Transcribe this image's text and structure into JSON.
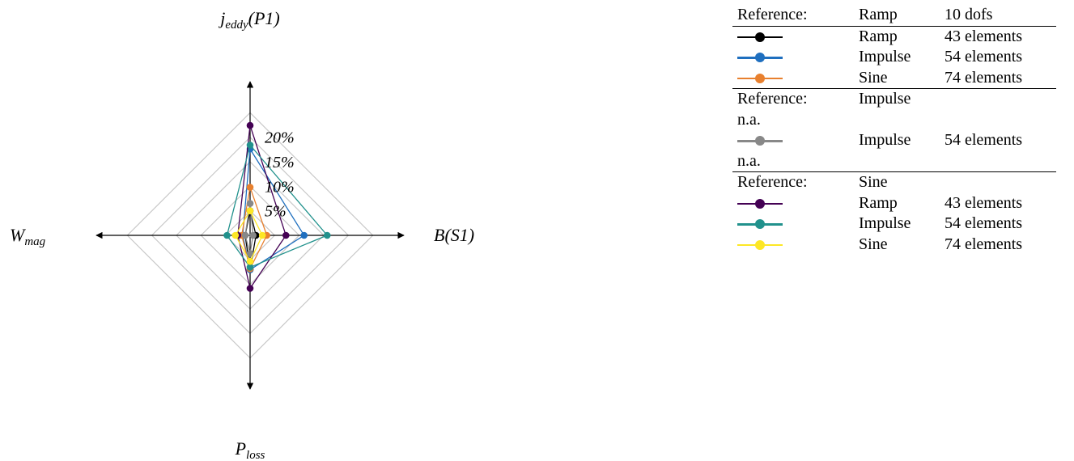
{
  "chart_data": {
    "type": "radar",
    "axes": [
      {
        "id": "top",
        "base": "j",
        "sub": "eddy",
        "suffix": "(P1)"
      },
      {
        "id": "right",
        "base": "B",
        "sub": "",
        "suffix": "(S1)"
      },
      {
        "id": "bottom",
        "base": "P",
        "sub": "loss",
        "suffix": ""
      },
      {
        "id": "left",
        "base": "W",
        "sub": "mag",
        "suffix": ""
      }
    ],
    "rings": [
      5,
      10,
      15,
      20,
      25
    ],
    "ring_labels": [
      "5%",
      "10%",
      "15%",
      "20%"
    ],
    "unit": "%",
    "axis_max": 30,
    "series": [
      {
        "group": 0,
        "label": "Ramp",
        "info": "43 elements",
        "color": "#000000",
        "values": [
          5.0,
          1.2,
          7.0,
          1.0
        ]
      },
      {
        "group": 0,
        "label": "Impulse",
        "info": "54 elements",
        "color": "#1f6fbf",
        "values": [
          17.6,
          11.0,
          7.0,
          1.5
        ]
      },
      {
        "group": 0,
        "label": "Sine",
        "info": "74 elements",
        "color": "#e8802e",
        "values": [
          9.8,
          3.4,
          6.8,
          1.7
        ]
      },
      {
        "group": 1,
        "label": "Impulse",
        "info": "54 elements",
        "color": "#888888",
        "values": [
          6.5,
          0.6,
          3.7,
          1.0
        ]
      },
      {
        "group": 2,
        "label": "Ramp",
        "info": "43 elements",
        "color": "#440154",
        "values": [
          22.4,
          7.3,
          10.8,
          2.5
        ]
      },
      {
        "group": 2,
        "label": "Impulse",
        "info": "54 elements",
        "color": "#21918c",
        "values": [
          18.4,
          15.7,
          6.5,
          4.7
        ]
      },
      {
        "group": 2,
        "label": "Sine",
        "info": "74 elements",
        "color": "#fde725",
        "values": [
          5.0,
          2.5,
          5.3,
          3.0
        ]
      }
    ]
  },
  "legend": {
    "groups": [
      {
        "ref_label": "Reference:",
        "ref_name": "Ramp",
        "ref_info": "10 dofs",
        "extra": []
      },
      {
        "ref_label": "Reference:",
        "ref_name": "Impulse",
        "ref_info": "",
        "extra": [
          "n.a.",
          "n.a."
        ]
      },
      {
        "ref_label": "Reference:",
        "ref_name": "Sine",
        "ref_info": "",
        "extra": []
      }
    ]
  }
}
